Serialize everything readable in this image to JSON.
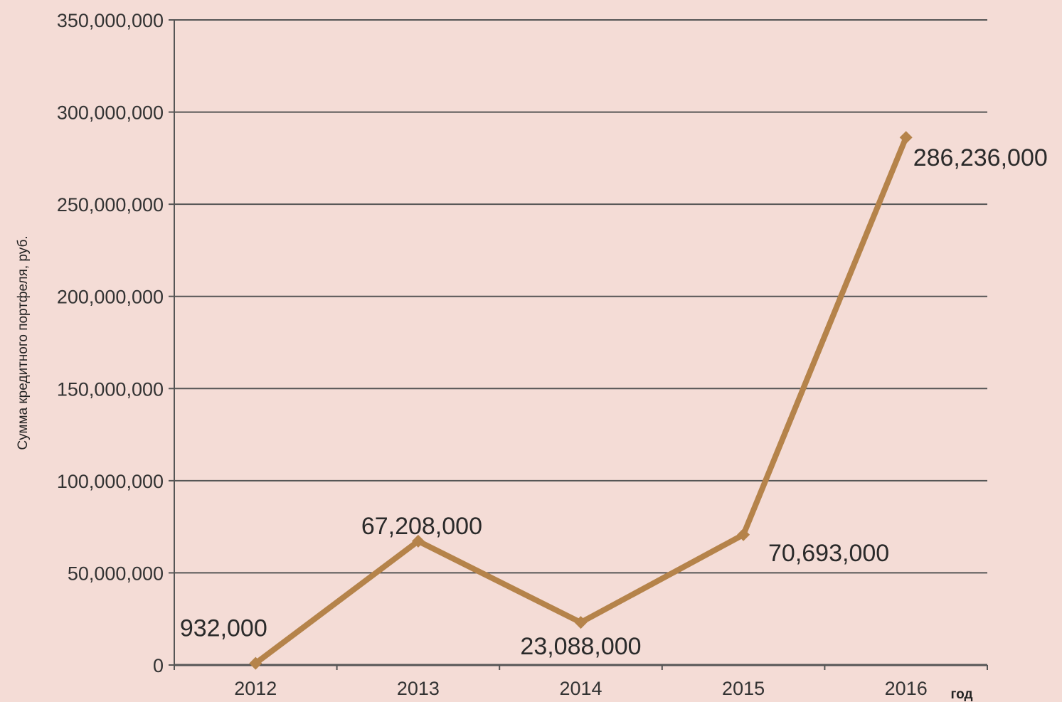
{
  "chart_data": {
    "type": "line",
    "ylabel": "Сумма кредитного портфеля, руб.",
    "xlabel": "год",
    "categories": [
      "2012",
      "2013",
      "2014",
      "2015",
      "2016"
    ],
    "series": [
      {
        "values": [
          932000,
          67208000,
          23088000,
          70693000,
          286236000
        ],
        "labels": [
          "932,000",
          "67,208,000",
          "23,088,000",
          "70,693,000",
          "286,236,000"
        ],
        "color": "#b5834a"
      }
    ],
    "ylim": [
      0,
      350000000
    ],
    "yticks": [
      0,
      50000000,
      100000000,
      150000000,
      200000000,
      250000000,
      300000000,
      350000000
    ],
    "ytick_labels": [
      "0",
      "50,000,000",
      "100,000,000",
      "150,000,000",
      "200,000,000",
      "250,000,000",
      "300,000,000",
      "350,000,000"
    ],
    "grid": true,
    "gridline_color": "#555555",
    "background": "#f4dcd6"
  }
}
